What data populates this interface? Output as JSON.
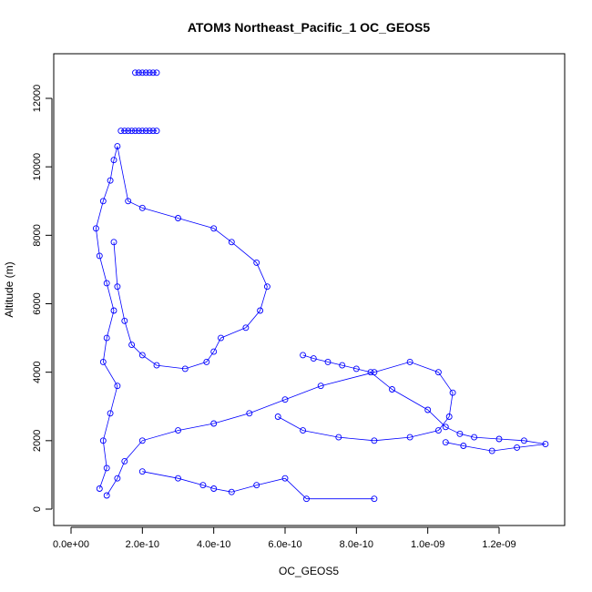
{
  "chart_data": {
    "type": "scatter",
    "title": "ATOM3 Northeast_Pacific_1 OC_GEOS5",
    "xlabel": "OC_GEOS5",
    "ylabel": "Altitude (m)",
    "xlim": [
      0,
      1.33e-09
    ],
    "ylim": [
      0,
      12800
    ],
    "x_ticks": [
      0,
      2e-10,
      4e-10,
      6e-10,
      8e-10,
      1e-09,
      1.2e-09
    ],
    "x_tick_labels": [
      "0.0e+00",
      "2.0e-10",
      "4.0e-10",
      "6.0e-10",
      "8.0e-10",
      "1.0e-09",
      "1.2e-09"
    ],
    "y_ticks": [
      0,
      2000,
      4000,
      6000,
      8000,
      10000,
      12000
    ],
    "y_tick_labels": [
      "0",
      "2000",
      "4000",
      "6000",
      "8000",
      "10000",
      "12000"
    ],
    "marker": "open-circle",
    "line_style": "connected points",
    "color": "#0000ff",
    "series": [
      {
        "x": [
          8e-11,
          1e-10,
          9e-11,
          1.1e-10,
          1.3e-10,
          9e-11,
          1e-10,
          1.2e-10,
          1e-10,
          8e-11,
          7e-11,
          9e-11,
          1.1e-10,
          1.2e-10,
          1.3e-10,
          1.6e-10,
          2e-10,
          3e-10,
          4e-10,
          4.5e-10,
          5.2e-10,
          5.5e-10,
          5.3e-10,
          4.9e-10,
          4.2e-10,
          4e-10,
          3.8e-10,
          3.2e-10,
          2.4e-10,
          2e-10,
          1.7e-10,
          1.5e-10,
          1.3e-10,
          1.2e-10
        ],
        "y": [
          600,
          1200,
          2000,
          2800,
          3600,
          4300,
          5000,
          5800,
          6600,
          7400,
          8200,
          9000,
          9600,
          10200,
          10600,
          9000,
          8800,
          8500,
          8200,
          7800,
          7200,
          6500,
          5800,
          5300,
          5000,
          4600,
          4300,
          4100,
          4200,
          4500,
          4800,
          5500,
          6500,
          7800
        ]
      },
      {
        "x": [
          1e-10,
          1.3e-10,
          1.5e-10,
          2e-10,
          3e-10,
          4e-10,
          5e-10,
          6e-10,
          7e-10,
          8.5e-10,
          9.5e-10,
          1.03e-09,
          1.07e-09,
          1.06e-09,
          1.03e-09,
          9.5e-10,
          8.5e-10,
          7.5e-10,
          6.5e-10,
          5.8e-10
        ],
        "y": [
          400,
          900,
          1400,
          2000,
          2300,
          2500,
          2800,
          3200,
          3600,
          4000,
          4300,
          4000,
          3400,
          2700,
          2300,
          2100,
          2000,
          2100,
          2300,
          2700
        ]
      },
      {
        "x": [
          6.5e-10,
          6.8e-10,
          7.2e-10,
          7.6e-10,
          8e-10,
          8.4e-10,
          9e-10,
          1e-09,
          1.05e-09,
          1.09e-09,
          1.13e-09,
          1.2e-09,
          1.27e-09,
          1.33e-09,
          1.25e-09,
          1.18e-09,
          1.1e-09,
          1.05e-09
        ],
        "y": [
          4500,
          4400,
          4300,
          4200,
          4100,
          4000,
          3500,
          2900,
          2400,
          2200,
          2100,
          2050,
          2000,
          1900,
          1800,
          1700,
          1850,
          1950
        ]
      },
      {
        "x": [
          2e-10,
          3e-10,
          3.7e-10,
          4e-10,
          4.5e-10,
          5.2e-10,
          6e-10,
          6.6e-10,
          8.5e-10
        ],
        "y": [
          1100,
          900,
          700,
          600,
          500,
          700,
          900,
          300,
          300
        ]
      },
      {
        "x": [
          1.4e-10,
          1.5e-10,
          1.6e-10,
          1.7e-10,
          1.8e-10,
          1.9e-10,
          2e-10,
          2.1e-10,
          2.2e-10,
          2.3e-10,
          2.4e-10
        ],
        "y": [
          11050,
          11050,
          11050,
          11050,
          11050,
          11050,
          11050,
          11050,
          11050,
          11050,
          11050
        ]
      },
      {
        "x": [
          1.8e-10,
          1.9e-10,
          2e-10,
          2.1e-10,
          2.2e-10,
          2.3e-10,
          2.4e-10
        ],
        "y": [
          12750,
          12750,
          12750,
          12750,
          12750,
          12750,
          12750
        ]
      }
    ]
  }
}
